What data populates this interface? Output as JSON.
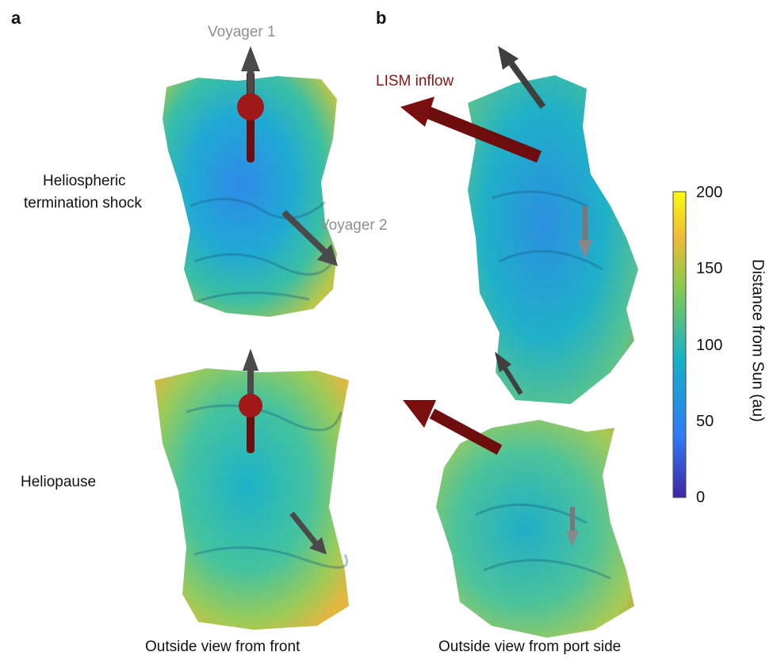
{
  "panels": {
    "a": "a",
    "b": "b"
  },
  "labels": {
    "voyager1": "Voyager 1",
    "voyager2": "Voyager 2",
    "lism_inflow": "LISM inflow",
    "row1": [
      "Heliospheric",
      "termination shock"
    ],
    "row2": "Heliopause",
    "col1": "Outside view from front",
    "col2": "Outside view from port side"
  },
  "colorbar": {
    "label": "Distance from Sun (au)",
    "range": [
      0,
      200
    ],
    "ticks": [
      "200",
      "150",
      "100",
      "50",
      "0"
    ],
    "colormap": "parula",
    "colors": [
      "#3e26a8",
      "#2f7af5",
      "#15b1c6",
      "#6ccc5d",
      "#f0ba37",
      "#f9fb0e"
    ]
  },
  "colors": {
    "inflow_arrow": "#7a0f0f",
    "voyager_arrow": "#4a4a4a"
  }
}
